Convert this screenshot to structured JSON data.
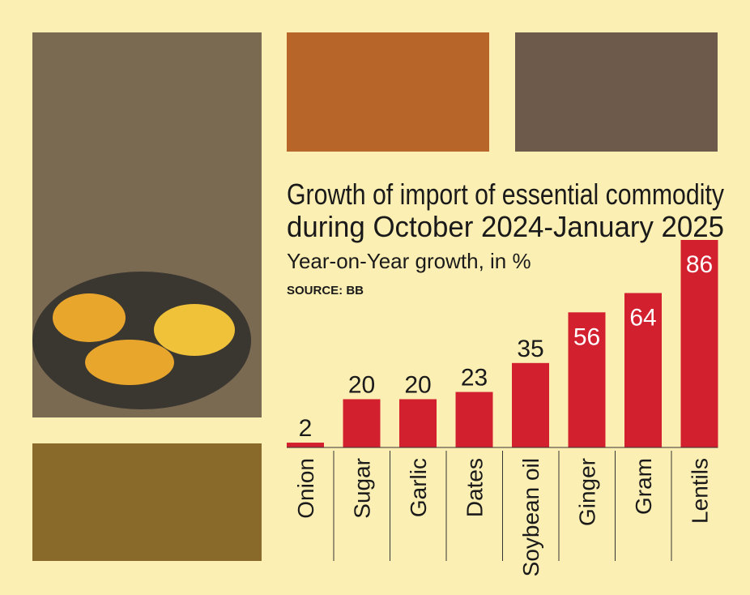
{
  "chart_data": {
    "type": "bar",
    "title": [
      "Growth of import of essential commodity",
      "during October 2024-January 2025"
    ],
    "subtitle": "Year-on-Year growth, in %",
    "source": "SOURCE: BB",
    "categories": [
      "Onion",
      "Sugar",
      "Garlic",
      "Dates",
      "Soybean oil",
      "Ginger",
      "Gram",
      "Lentils"
    ],
    "values": [
      2,
      20,
      20,
      23,
      35,
      56,
      64,
      86
    ],
    "color": "#d3202f",
    "ylim": [
      0,
      86
    ]
  }
}
